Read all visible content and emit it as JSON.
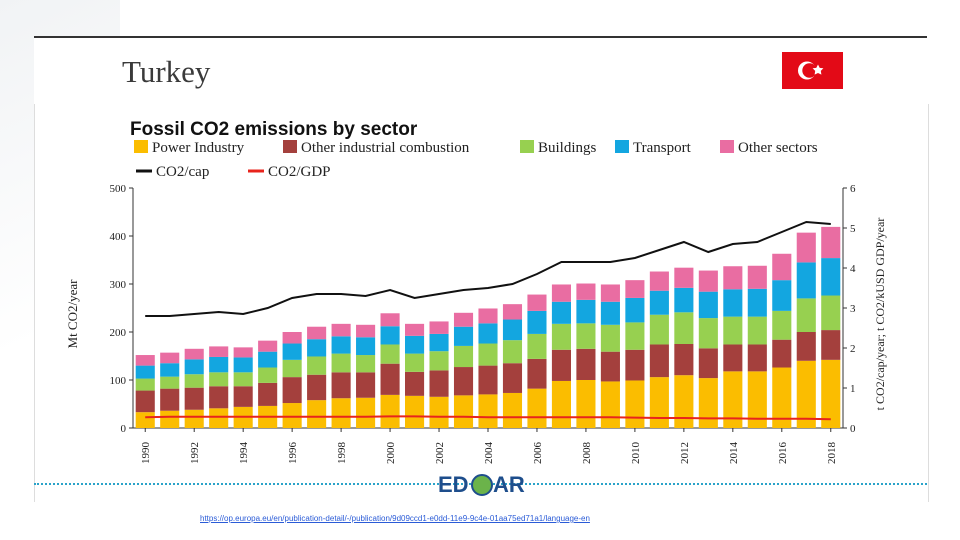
{
  "header": {
    "country": "Turkey"
  },
  "footer": {
    "source_url": "https://op.europa.eu/en/publication-detail/-/publication/9d09ccd1-e0dd-11e9-9c4e-01aa75ed71a1/language-en",
    "logo_text": "EDGAR"
  },
  "colors": {
    "power": "#fbbd00",
    "industry": "#a4403d",
    "buildings": "#97d050",
    "transport": "#13a6e0",
    "other": "#e96da2",
    "co2cap": "#111111",
    "co2gdp": "#e8241c",
    "flag_red": "#e30a17"
  },
  "chart_data": {
    "type": "bar",
    "stacked": true,
    "title": "Fossil CO2 emissions by sector",
    "ylabel": "Mt CO2/year",
    "y2label": "t CO2/cap/year; t CO2/kUSD GDP/year",
    "ylim": [
      0,
      500
    ],
    "y2lim": [
      0,
      6
    ],
    "yticks": [
      "0",
      "100",
      "200",
      "300",
      "400",
      "500"
    ],
    "y2ticks": [
      "0",
      "1",
      "2",
      "3",
      "4",
      "5",
      "6"
    ],
    "categories": [
      "1990",
      "1991",
      "1992",
      "1993",
      "1994",
      "1995",
      "1996",
      "1997",
      "1998",
      "1999",
      "2000",
      "2001",
      "2002",
      "2003",
      "2004",
      "2005",
      "2006",
      "2007",
      "2008",
      "2009",
      "2010",
      "2011",
      "2012",
      "2013",
      "2014",
      "2015",
      "2016",
      "2017",
      "2018"
    ],
    "xticks": [
      "1990",
      "1992",
      "1994",
      "1996",
      "1998",
      "2000",
      "2002",
      "2004",
      "2006",
      "2008",
      "2010",
      "2012",
      "2014",
      "2016",
      "2018"
    ],
    "series": [
      {
        "name": "Power Industry",
        "color_key": "power",
        "values": [
          33,
          36,
          38,
          41,
          44,
          46,
          52,
          58,
          62,
          63,
          69,
          67,
          65,
          68,
          70,
          73,
          82,
          98,
          100,
          97,
          99,
          106,
          110,
          104,
          118,
          118,
          126,
          140,
          142
        ]
      },
      {
        "name": "Other industrial combustion",
        "color_key": "industry",
        "values": [
          45,
          46,
          46,
          46,
          43,
          48,
          54,
          53,
          54,
          53,
          65,
          50,
          55,
          59,
          60,
          62,
          62,
          65,
          65,
          62,
          64,
          68,
          65,
          62,
          56,
          56,
          58,
          60,
          62
        ]
      },
      {
        "name": "Buildings",
        "color_key": "buildings",
        "values": [
          25,
          25,
          28,
          29,
          29,
          32,
          36,
          38,
          39,
          36,
          40,
          38,
          40,
          44,
          46,
          48,
          52,
          54,
          53,
          56,
          57,
          62,
          66,
          63,
          58,
          58,
          60,
          70,
          72
        ]
      },
      {
        "name": "Transport",
        "color_key": "transport",
        "values": [
          27,
          28,
          31,
          32,
          31,
          33,
          34,
          36,
          36,
          37,
          38,
          37,
          36,
          40,
          42,
          43,
          48,
          46,
          49,
          48,
          51,
          50,
          51,
          55,
          57,
          58,
          64,
          75,
          78
        ]
      },
      {
        "name": "Other sectors",
        "color_key": "other",
        "values": [
          22,
          22,
          22,
          22,
          21,
          23,
          24,
          26,
          26,
          26,
          27,
          25,
          26,
          29,
          31,
          32,
          34,
          36,
          34,
          36,
          37,
          40,
          42,
          44,
          48,
          48,
          55,
          62,
          65
        ]
      }
    ],
    "lines": [
      {
        "name": "CO2/cap",
        "color_key": "co2cap",
        "axis": "right",
        "values": [
          2.8,
          2.8,
          2.85,
          2.9,
          2.85,
          3.0,
          3.25,
          3.35,
          3.35,
          3.3,
          3.45,
          3.25,
          3.35,
          3.45,
          3.5,
          3.6,
          3.85,
          4.15,
          4.15,
          4.15,
          4.25,
          4.45,
          4.65,
          4.4,
          4.6,
          4.65,
          4.9,
          5.15,
          5.1
        ]
      },
      {
        "name": "CO2/GDP",
        "color_key": "co2gdp",
        "axis": "right",
        "values": [
          0.27,
          0.28,
          0.28,
          0.28,
          0.28,
          0.28,
          0.28,
          0.28,
          0.28,
          0.28,
          0.29,
          0.29,
          0.28,
          0.28,
          0.27,
          0.27,
          0.27,
          0.27,
          0.27,
          0.27,
          0.26,
          0.25,
          0.25,
          0.24,
          0.24,
          0.23,
          0.23,
          0.23,
          0.22
        ]
      }
    ],
    "legend_position": "top-left",
    "grid": false
  }
}
